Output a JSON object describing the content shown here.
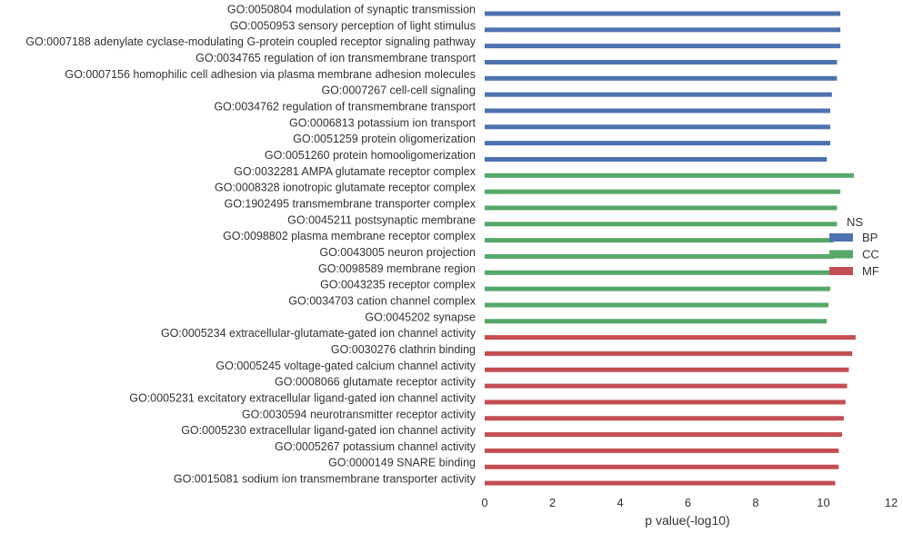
{
  "chart_data": {
    "type": "bar",
    "orientation": "horizontal",
    "xlabel": "p value(-log10)",
    "ylabel": "",
    "xlim": [
      0,
      12
    ],
    "xticks": [
      0,
      2,
      4,
      6,
      8,
      10,
      12
    ],
    "grid": false,
    "legend": {
      "title": "NS",
      "placement": "right",
      "entries": [
        {
          "name": "BP",
          "color": "#4c72b0"
        },
        {
          "name": "CC",
          "color": "#55a868"
        },
        {
          "name": "MF",
          "color": "#c44e52"
        }
      ]
    },
    "bars": [
      {
        "label": "GO:0050804 modulation of synaptic transmission",
        "value": 10.5,
        "group": "BP"
      },
      {
        "label": "GO:0050953 sensory perception of light stimulus",
        "value": 10.5,
        "group": "BP"
      },
      {
        "label": "GO:0007188 adenylate cyclase-modulating G-protein coupled receptor signaling pathway",
        "value": 10.5,
        "group": "BP"
      },
      {
        "label": "GO:0034765 regulation of ion transmembrane transport",
        "value": 10.4,
        "group": "BP"
      },
      {
        "label": "GO:0007156 homophilic cell adhesion via plasma membrane adhesion molecules",
        "value": 10.4,
        "group": "BP"
      },
      {
        "label": "GO:0007267 cell-cell signaling",
        "value": 10.25,
        "group": "BP"
      },
      {
        "label": "GO:0034762 regulation of transmembrane transport",
        "value": 10.2,
        "group": "BP"
      },
      {
        "label": "GO:0006813 potassium ion transport",
        "value": 10.2,
        "group": "BP"
      },
      {
        "label": "GO:0051259 protein oligomerization",
        "value": 10.2,
        "group": "BP"
      },
      {
        "label": "GO:0051260 protein homooligomerization",
        "value": 10.1,
        "group": "BP"
      },
      {
        "label": "GO:0032281 AMPA glutamate receptor complex",
        "value": 10.9,
        "group": "CC"
      },
      {
        "label": "GO:0008328 ionotropic glutamate receptor complex",
        "value": 10.5,
        "group": "CC"
      },
      {
        "label": "GO:1902495 transmembrane transporter complex",
        "value": 10.4,
        "group": "CC"
      },
      {
        "label": "GO:0045211 postsynaptic membrane",
        "value": 10.4,
        "group": "CC"
      },
      {
        "label": "GO:0098802 plasma membrane receptor complex",
        "value": 10.3,
        "group": "CC"
      },
      {
        "label": "GO:0043005 neuron projection",
        "value": 10.3,
        "group": "CC"
      },
      {
        "label": "GO:0098589 membrane region",
        "value": 10.3,
        "group": "CC"
      },
      {
        "label": "GO:0043235 receptor complex",
        "value": 10.2,
        "group": "CC"
      },
      {
        "label": "GO:0034703 cation channel complex",
        "value": 10.15,
        "group": "CC"
      },
      {
        "label": "GO:0045202 synapse",
        "value": 10.1,
        "group": "CC"
      },
      {
        "label": "GO:0005234 extracellular-glutamate-gated ion channel activity",
        "value": 10.95,
        "group": "MF"
      },
      {
        "label": "GO:0030276 clathrin binding",
        "value": 10.85,
        "group": "MF"
      },
      {
        "label": "GO:0005245 voltage-gated calcium channel activity",
        "value": 10.75,
        "group": "MF"
      },
      {
        "label": "GO:0008066 glutamate receptor activity",
        "value": 10.7,
        "group": "MF"
      },
      {
        "label": "GO:0005231 excitatory extracellular ligand-gated ion channel activity",
        "value": 10.65,
        "group": "MF"
      },
      {
        "label": "GO:0030594 neurotransmitter receptor activity",
        "value": 10.6,
        "group": "MF"
      },
      {
        "label": "GO:0005230 extracellular ligand-gated ion channel activity",
        "value": 10.55,
        "group": "MF"
      },
      {
        "label": "GO:0005267 potassium channel activity",
        "value": 10.45,
        "group": "MF"
      },
      {
        "label": "GO:0000149 SNARE binding",
        "value": 10.45,
        "group": "MF"
      },
      {
        "label": "GO:0015081 sodium ion transmembrane transporter activity",
        "value": 10.35,
        "group": "MF"
      }
    ]
  }
}
